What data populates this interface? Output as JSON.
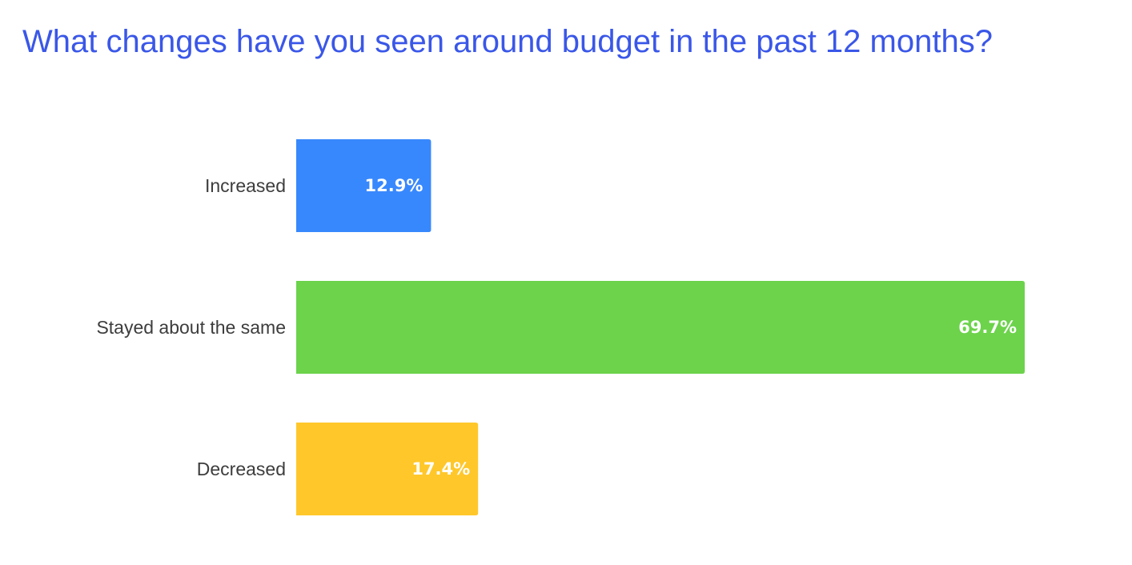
{
  "chart_data": {
    "type": "bar",
    "orientation": "horizontal",
    "title": "What changes have you seen around budget in the past 12 months?",
    "categories": [
      "Increased",
      "Stayed about the same",
      "Decreased"
    ],
    "values": [
      12.9,
      69.7,
      17.4
    ],
    "value_labels": [
      "12.9%",
      "69.7%",
      "17.4%"
    ],
    "colors": [
      "#3888fd",
      "#6cd34b",
      "#ffc72a"
    ],
    "title_color": "#3a57e8",
    "grid": false,
    "legend": "none"
  }
}
